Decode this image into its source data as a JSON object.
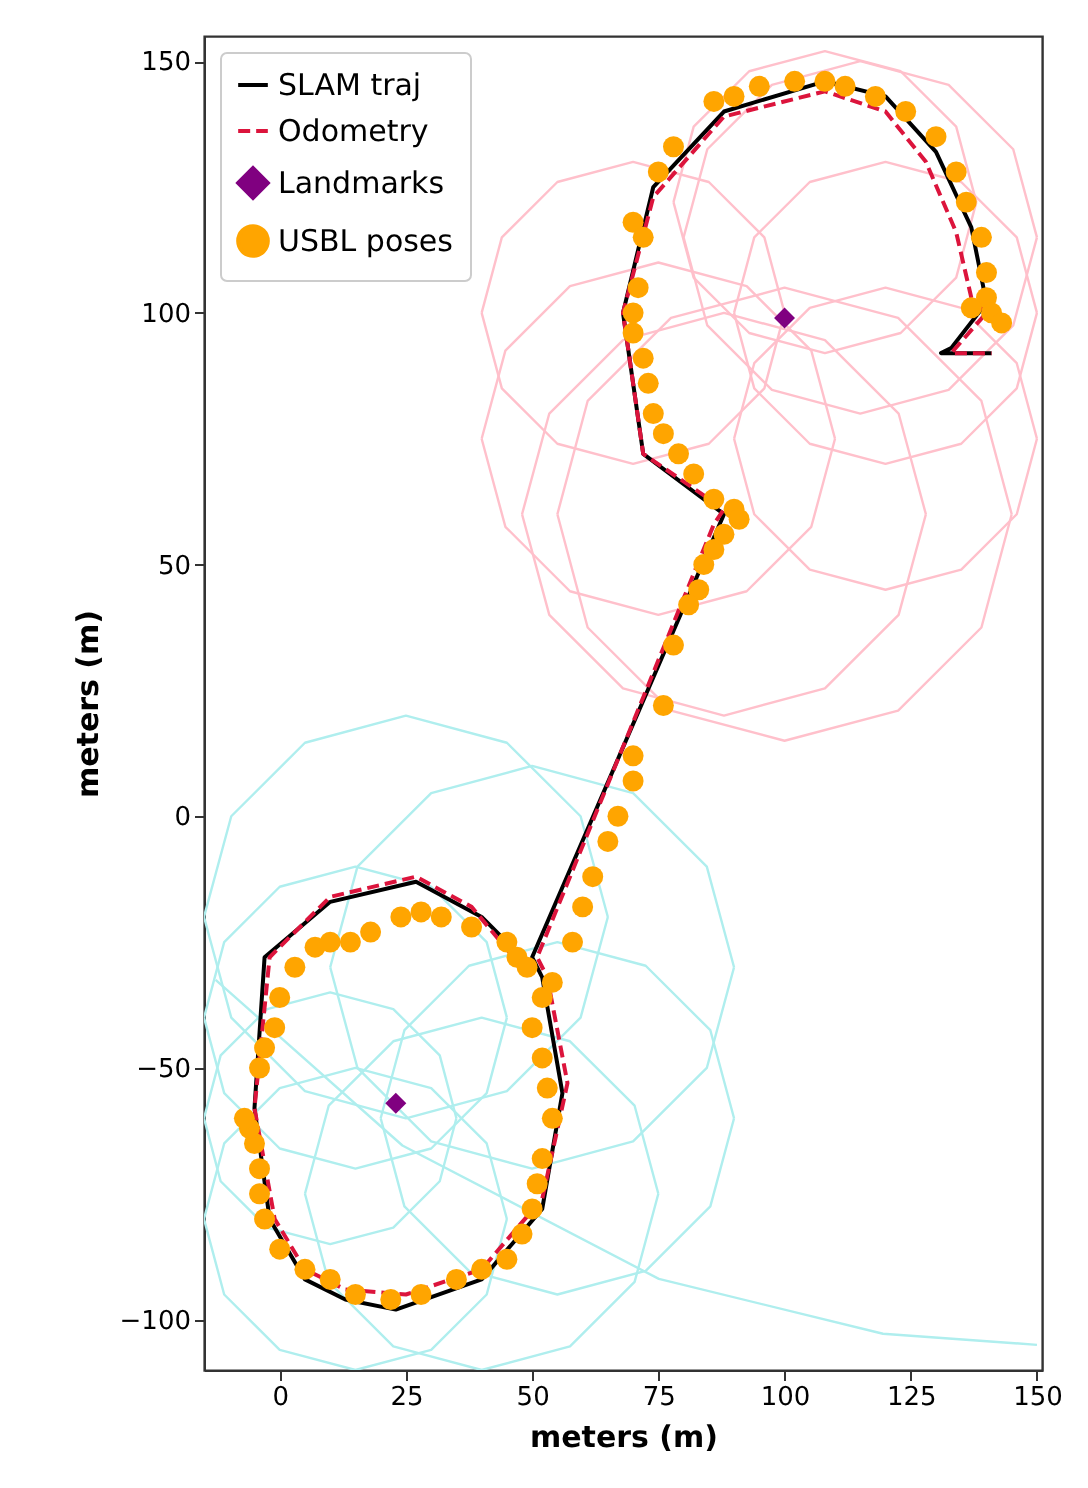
{
  "chart_data": {
    "type": "line",
    "xlabel": "meters (m)",
    "ylabel": "meters (m)",
    "xlim": [
      -15,
      151
    ],
    "ylim": [
      -110,
      155
    ],
    "xticks": [
      0,
      25,
      50,
      75,
      100,
      125,
      150
    ],
    "yticks": [
      -100,
      -50,
      0,
      50,
      100,
      150
    ],
    "grid": false,
    "legend": "top left",
    "series": [
      {
        "color": "#ffc0cb",
        "x": [
          40,
          44,
          55,
          70,
          85,
          96,
          100
        ],
        "values": [
          100,
          115,
          126,
          130,
          126,
          115,
          100
        ]
      },
      {
        "color": "#ffc0cb",
        "x": [
          40,
          44,
          55,
          70,
          85,
          96,
          100
        ],
        "values": [
          100,
          85,
          74,
          70,
          74,
          85,
          100
        ]
      },
      {
        "color": "#ffc0cb",
        "x": [
          78,
          82,
          93,
          108,
          123,
          134,
          138
        ],
        "values": [
          122,
          137,
          148,
          152,
          148,
          137,
          122
        ]
      },
      {
        "color": "#ffc0cb",
        "x": [
          78,
          82,
          93,
          108,
          123,
          134,
          138
        ],
        "values": [
          122,
          107,
          96,
          92,
          96,
          107,
          122
        ]
      },
      {
        "color": "#ffc0cb",
        "x": [
          80,
          84.7,
          97.5,
          115,
          132.5,
          145.3,
          150
        ],
        "values": [
          115,
          132.5,
          145.3,
          150,
          145.3,
          132.5,
          115
        ]
      },
      {
        "color": "#ffc0cb",
        "x": [
          80,
          84.7,
          97.5,
          115,
          132.5,
          145.3,
          150
        ],
        "values": [
          115,
          97.5,
          84.7,
          80,
          84.7,
          97.5,
          115
        ]
      },
      {
        "color": "#ffc0cb",
        "x": [
          48,
          53.4,
          68,
          88,
          108,
          122.6,
          128
        ],
        "values": [
          60,
          80,
          94.6,
          100,
          94.6,
          80,
          60
        ]
      },
      {
        "color": "#ffc0cb",
        "x": [
          48,
          53.4,
          68,
          88,
          108,
          122.6,
          128
        ],
        "values": [
          60,
          40,
          25.4,
          20,
          25.4,
          40,
          60
        ]
      },
      {
        "color": "#ffc0cb",
        "x": [
          40,
          44.7,
          57.5,
          75,
          92.5,
          105.3,
          110
        ],
        "values": [
          75,
          92.5,
          105.3,
          110,
          105.3,
          92.5,
          75
        ]
      },
      {
        "color": "#ffc0cb",
        "x": [
          40,
          44.7,
          57.5,
          75,
          92.5,
          105.3,
          110
        ],
        "values": [
          75,
          57.5,
          44.7,
          40,
          44.7,
          57.5,
          75
        ]
      },
      {
        "color": "#ffc0cb",
        "x": [
          90,
          94,
          105,
          120,
          135,
          146,
          150
        ],
        "values": [
          75,
          90,
          101,
          105,
          101,
          90,
          75
        ]
      },
      {
        "color": "#ffc0cb",
        "x": [
          90,
          94,
          105,
          120,
          135,
          146,
          150
        ],
        "values": [
          75,
          60,
          49,
          45,
          49,
          60,
          75
        ]
      },
      {
        "color": "#ffc0cb",
        "x": [
          55,
          61,
          77.5,
          100,
          122.5,
          139,
          145
        ],
        "values": [
          60,
          82.5,
          99,
          105,
          99,
          82.5,
          60
        ]
      },
      {
        "color": "#ffc0cb",
        "x": [
          55,
          61,
          77.5,
          100,
          122.5,
          139,
          145
        ],
        "values": [
          60,
          37.5,
          21,
          15,
          21,
          37.5,
          60
        ]
      },
      {
        "color": "#ffc0cb",
        "x": [
          90,
          94,
          105,
          120,
          135,
          146,
          150
        ],
        "values": [
          100,
          115,
          126,
          130,
          126,
          115,
          100
        ]
      },
      {
        "color": "#ffc0cb",
        "x": [
          90,
          94,
          105,
          120,
          135,
          146,
          150
        ],
        "values": [
          100,
          85,
          74,
          70,
          74,
          85,
          100
        ]
      },
      {
        "color": "#afeeee",
        "x": [
          10,
          15.4,
          30,
          50,
          70,
          84.6,
          90
        ],
        "values": [
          -30,
          -10,
          4.6,
          10,
          4.6,
          -10,
          -30
        ]
      },
      {
        "color": "#afeeee",
        "x": [
          10,
          15.4,
          30,
          50,
          70,
          84.6,
          90
        ],
        "values": [
          -30,
          -50,
          -64.6,
          -70,
          -64.6,
          -50,
          -30
        ]
      },
      {
        "color": "#afeeee",
        "x": [
          -15,
          -11,
          0,
          15,
          30,
          41,
          45
        ],
        "values": [
          -40,
          -25,
          -14,
          -10,
          -14,
          -25,
          -40
        ]
      },
      {
        "color": "#afeeee",
        "x": [
          -15,
          -11,
          0,
          15,
          30,
          41,
          45
        ],
        "values": [
          -40,
          -55,
          -66,
          -70,
          -66,
          -55,
          -40
        ]
      },
      {
        "color": "#afeeee",
        "x": [
          -15,
          -11,
          0,
          15,
          30,
          41,
          45
        ],
        "values": [
          -80,
          -65,
          -54,
          -50,
          -54,
          -65,
          -80
        ]
      },
      {
        "color": "#afeeee",
        "x": [
          -15,
          -11,
          0,
          15,
          30,
          41,
          45
        ],
        "values": [
          -80,
          -95,
          -106,
          -110,
          -106,
          -95,
          -80
        ]
      },
      {
        "color": "#afeeee",
        "x": [
          5,
          9.7,
          22.5,
          40,
          57.5,
          70.3,
          75
        ],
        "values": [
          -75,
          -57.5,
          -44.7,
          -40,
          -44.7,
          -57.5,
          -75
        ]
      },
      {
        "color": "#afeeee",
        "x": [
          5,
          9.7,
          22.5,
          40,
          57.5,
          70.3,
          75
        ],
        "values": [
          -75,
          -92.5,
          -105.3,
          -110,
          -105.3,
          -92.5,
          -75
        ]
      },
      {
        "color": "#afeeee",
        "x": [
          20,
          24.7,
          37.5,
          55,
          72.5,
          85.3,
          90
        ],
        "values": [
          -60,
          -42.5,
          -29.7,
          -25,
          -29.7,
          -42.5,
          -60
        ]
      },
      {
        "color": "#afeeee",
        "x": [
          20,
          24.7,
          37.5,
          55,
          72.5,
          85.3,
          90
        ],
        "values": [
          -60,
          -77.5,
          -90.3,
          -95,
          -90.3,
          -77.5,
          -60
        ]
      },
      {
        "color": "#afeeee",
        "x": [
          -15,
          -9.6,
          5,
          25,
          45,
          59.6,
          65
        ],
        "values": [
          -20,
          0,
          14.6,
          20,
          14.6,
          0,
          -20
        ]
      },
      {
        "color": "#afeeee",
        "x": [
          -15,
          -9.6,
          5,
          25,
          45,
          59.6,
          65
        ],
        "values": [
          -20,
          -40,
          -54.6,
          -60,
          -54.6,
          -40,
          -20
        ]
      },
      {
        "color": "#afeeee",
        "x": [
          -15,
          -11.7,
          -2.5,
          10,
          22.5,
          31.7,
          35
        ],
        "values": [
          -60,
          -47.5,
          -38.3,
          -35,
          -38.3,
          -47.5,
          -60
        ]
      },
      {
        "color": "#afeeee",
        "x": [
          -15,
          -11.7,
          -2.5,
          10,
          22.5,
          31.7,
          35
        ],
        "values": [
          -60,
          -72.5,
          -81.7,
          -85,
          -81.7,
          -72.5,
          -60
        ]
      },
      {
        "color": "#afeeee",
        "x": [
          -12.7,
          24.3,
          75.1,
          119.5,
          150
        ],
        "values": [
          -32.5,
          -65.4,
          -91.9,
          -102.8,
          -105
        ]
      },
      {
        "name": "SLAM traj",
        "color": "#000000",
        "line_style": "solid",
        "x": [
          50,
          40,
          27,
          10,
          -3,
          -5,
          -2,
          5,
          13,
          23,
          40,
          52,
          56,
          52,
          50,
          88,
          72,
          68,
          74,
          88,
          108,
          120,
          130,
          137,
          140,
          133,
          131,
          141
        ],
        "values": [
          -30,
          -20,
          -13,
          -17,
          -28,
          -58,
          -80,
          -92,
          -96,
          -98,
          -92,
          -78,
          -55,
          -32,
          -28,
          60,
          72,
          100,
          125,
          140,
          146,
          143,
          132,
          117,
          102,
          93,
          92,
          92
        ]
      },
      {
        "name": "Odometry",
        "color": "#dc143c",
        "line_style": "dashed",
        "x": [
          48,
          38,
          27,
          10,
          -2,
          -5,
          -1,
          5,
          13,
          25,
          40,
          52,
          57,
          53,
          51,
          86,
          88,
          72,
          68,
          74,
          88,
          108,
          120,
          128,
          134,
          137,
          140,
          133,
          138,
          141
        ],
        "values": [
          -30,
          -18,
          -12,
          -16,
          -28,
          -58,
          -80,
          -90,
          -94,
          -95,
          -90,
          -76,
          -53,
          -32,
          -28,
          58,
          61,
          72,
          100,
          123,
          139,
          144,
          140,
          130,
          116,
          103,
          100,
          92,
          92,
          92
        ]
      },
      {
        "type": "scatter",
        "name": "Landmarks",
        "color": "#800080",
        "marker": "diamond",
        "x": [
          23,
          100
        ],
        "values": [
          -57,
          99
        ]
      },
      {
        "type": "scatter",
        "name": "USBL poses",
        "color": "#ffa500",
        "marker": "circle",
        "x": [
          75,
          78,
          86,
          90,
          95,
          102,
          108,
          112,
          118,
          124,
          130,
          134,
          136,
          139,
          140,
          140,
          141,
          143,
          137,
          70,
          72,
          71,
          70,
          70,
          72,
          73,
          74,
          76,
          79,
          82,
          86,
          90,
          91,
          88,
          86,
          84,
          83,
          81,
          78,
          76,
          70,
          70,
          67,
          65,
          62,
          60,
          58,
          54,
          52,
          50,
          52,
          53,
          54,
          52,
          51,
          50,
          48,
          45,
          40,
          35,
          28,
          22,
          15,
          10,
          5,
          0,
          -3,
          -4,
          -4,
          -5,
          -6,
          -7,
          -4,
          -3,
          -1,
          0,
          3,
          7,
          10,
          14,
          18,
          24,
          28,
          32,
          38,
          45,
          47,
          49
        ],
        "values": [
          128,
          133,
          142,
          143,
          145,
          146,
          146,
          145,
          143,
          140,
          135,
          128,
          122,
          115,
          108,
          103,
          100,
          98,
          101,
          118,
          115,
          105,
          100,
          96,
          91,
          86,
          80,
          76,
          72,
          68,
          63,
          61,
          59,
          56,
          53,
          50,
          45,
          42,
          34,
          22,
          12,
          7,
          0,
          -5,
          -12,
          -18,
          -25,
          -33,
          -36,
          -42,
          -48,
          -54,
          -60,
          -68,
          -73,
          -78,
          -83,
          -88,
          -90,
          -92,
          -95,
          -96,
          -95,
          -92,
          -90,
          -86,
          -80,
          -75,
          -70,
          -65,
          -62,
          -60,
          -50,
          -46,
          -42,
          -36,
          -30,
          -26,
          -25,
          -25,
          -23,
          -20,
          -19,
          -20,
          -22,
          -25,
          -28,
          -30
        ]
      }
    ]
  }
}
